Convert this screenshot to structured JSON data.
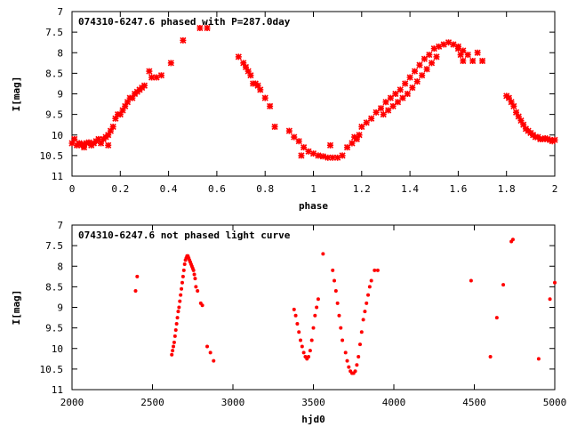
{
  "chart_data": [
    {
      "type": "scatter",
      "title": "074310-6247.6 phased with P=287.0day",
      "xlabel": "phase",
      "ylabel": "I[mag]",
      "xlim": [
        0,
        2
      ],
      "ylim": [
        11,
        7
      ],
      "y_inverted": true,
      "grid": false,
      "legend": "none",
      "x_ticks": [
        0,
        0.2,
        0.4,
        0.6,
        0.8,
        1,
        1.2,
        1.4,
        1.6,
        1.8,
        2
      ],
      "x_tick_labels": [
        "0",
        "0.2",
        "0.4",
        "0.6",
        "0.8",
        "1",
        "1.2",
        "1.4",
        "1.6",
        "1.8",
        "2"
      ],
      "y_ticks": [
        7,
        7.5,
        8,
        8.5,
        9,
        9.5,
        10,
        10.5,
        11
      ],
      "y_tick_labels": [
        "7",
        "7.5",
        "8",
        "8.5",
        "9",
        "9.5",
        "10",
        "10.5",
        "11"
      ],
      "marker_color": "#ff0000",
      "marker": "cross",
      "series": [
        {
          "x": [
            0.0,
            0.01,
            0.02,
            0.03,
            0.04,
            0.05,
            0.06,
            0.07,
            0.08,
            0.09,
            0.1,
            0.11,
            0.12,
            0.13,
            0.14,
            0.15,
            0.16,
            0.17,
            0.18,
            0.19,
            0.2,
            0.21,
            0.22,
            0.23,
            0.24,
            0.25,
            0.26,
            0.27,
            0.28,
            0.29,
            0.3,
            0.32,
            0.33,
            0.35,
            0.37,
            0.41,
            0.46,
            0.53,
            0.56,
            0.69,
            0.71,
            0.72,
            0.73,
            0.74,
            0.75,
            0.76,
            0.77,
            0.78,
            0.8,
            0.82,
            0.84,
            0.9,
            0.92,
            0.94,
            0.96,
            0.98,
            1.0,
            1.02,
            1.04,
            1.06,
            1.08,
            1.1,
            1.12,
            1.14,
            1.16,
            1.18,
            1.2,
            1.22,
            1.24,
            1.26,
            1.28,
            1.3,
            1.32,
            1.34,
            1.36,
            1.38,
            1.4,
            1.42,
            1.44,
            1.46,
            1.48,
            1.5,
            1.52,
            1.54,
            1.56,
            1.58,
            1.6,
            1.62,
            1.64,
            1.66,
            1.68,
            1.7,
            1.29,
            1.31,
            1.33,
            1.35,
            1.37,
            1.39,
            1.41,
            1.43,
            1.45,
            1.47,
            1.49,
            1.51,
            1.6,
            1.61,
            1.62,
            1.8,
            1.81,
            1.82,
            1.83,
            1.84,
            1.85,
            1.86,
            1.87,
            1.88,
            1.89,
            1.9,
            1.91,
            1.92,
            1.93,
            1.94,
            1.95,
            1.96,
            1.97,
            1.98,
            1.99,
            2.0,
            1.07,
            1.17,
            1.19,
            0.95,
            0.05,
            0.15
          ],
          "y": [
            10.2,
            10.1,
            10.25,
            10.2,
            10.25,
            10.22,
            10.2,
            10.18,
            10.25,
            10.2,
            10.15,
            10.1,
            10.2,
            10.1,
            10.05,
            10.0,
            9.9,
            9.8,
            9.6,
            9.5,
            9.5,
            9.4,
            9.3,
            9.2,
            9.1,
            9.1,
            9.0,
            8.95,
            8.9,
            8.85,
            8.8,
            8.45,
            8.6,
            8.6,
            8.55,
            8.25,
            7.7,
            7.4,
            7.4,
            8.1,
            8.25,
            8.35,
            8.45,
            8.55,
            8.75,
            8.75,
            8.8,
            8.9,
            9.1,
            9.3,
            9.8,
            9.9,
            10.05,
            10.15,
            10.3,
            10.4,
            10.45,
            10.5,
            10.52,
            10.55,
            10.55,
            10.55,
            10.5,
            10.3,
            10.2,
            10.1,
            9.8,
            9.7,
            9.6,
            9.45,
            9.35,
            9.2,
            9.1,
            9.0,
            8.9,
            8.75,
            8.6,
            8.45,
            8.3,
            8.15,
            8.05,
            7.9,
            7.85,
            7.8,
            7.75,
            7.8,
            7.85,
            7.95,
            8.05,
            8.2,
            8.0,
            8.2,
            9.5,
            9.4,
            9.3,
            9.2,
            9.1,
            9.0,
            8.85,
            8.7,
            8.55,
            8.4,
            8.25,
            8.1,
            7.9,
            8.05,
            8.2,
            9.05,
            9.1,
            9.2,
            9.3,
            9.45,
            9.55,
            9.65,
            9.75,
            9.85,
            9.9,
            9.95,
            10.0,
            10.05,
            10.05,
            10.1,
            10.1,
            10.08,
            10.1,
            10.12,
            10.15,
            10.12,
            10.25,
            10.05,
            10.0,
            10.5,
            10.3,
            10.25
          ]
        }
      ]
    },
    {
      "type": "scatter",
      "title": "074310-6247.6 not phased light curve",
      "xlabel": "hjd0",
      "ylabel": "I[mag]",
      "xlim": [
        2000,
        5000
      ],
      "ylim": [
        11,
        7
      ],
      "y_inverted": true,
      "grid": false,
      "legend": "none",
      "x_ticks": [
        2000,
        2500,
        3000,
        3500,
        4000,
        4500,
        5000
      ],
      "x_tick_labels": [
        "2000",
        "2500",
        "3000",
        "3500",
        "4000",
        "4500",
        "5000"
      ],
      "y_ticks": [
        7,
        7.5,
        8,
        8.5,
        9,
        9.5,
        10,
        10.5,
        11
      ],
      "y_tick_labels": [
        "7",
        "7.5",
        "8",
        "8.5",
        "9",
        "9.5",
        "10",
        "10.5",
        "11"
      ],
      "marker_color": "#ff0000",
      "marker": "dot",
      "series": [
        {
          "x": [
            2395,
            2405,
            2620,
            2625,
            2630,
            2635,
            2640,
            2645,
            2650,
            2655,
            2660,
            2665,
            2670,
            2675,
            2680,
            2685,
            2690,
            2695,
            2700,
            2705,
            2710,
            2715,
            2720,
            2725,
            2730,
            2735,
            2740,
            2745,
            2750,
            2755,
            2760,
            2765,
            2770,
            2780,
            2800,
            2810,
            2840,
            2860,
            2880,
            3380,
            3390,
            3400,
            3410,
            3420,
            3430,
            3440,
            3450,
            3460,
            3470,
            3480,
            3490,
            3500,
            3510,
            3520,
            3530,
            3560,
            3620,
            3630,
            3640,
            3650,
            3660,
            3670,
            3680,
            3700,
            3710,
            3720,
            3730,
            3740,
            3750,
            3760,
            3770,
            3780,
            3790,
            3800,
            3810,
            3820,
            3830,
            3840,
            3850,
            3860,
            3880,
            3900,
            4480,
            4600,
            4640,
            4680,
            4730,
            4740,
            4900,
            4970,
            5000
          ],
          "y": [
            8.6,
            8.25,
            10.15,
            10.05,
            9.95,
            9.85,
            9.7,
            9.55,
            9.4,
            9.25,
            9.1,
            9.0,
            8.85,
            8.7,
            8.55,
            8.4,
            8.25,
            8.1,
            7.95,
            7.85,
            7.8,
            7.75,
            7.75,
            7.8,
            7.85,
            7.9,
            7.95,
            8.0,
            8.05,
            8.1,
            8.2,
            8.3,
            8.5,
            8.6,
            8.9,
            8.95,
            9.95,
            10.1,
            10.3,
            9.05,
            9.2,
            9.4,
            9.6,
            9.8,
            9.95,
            10.1,
            10.2,
            10.25,
            10.2,
            10.05,
            9.8,
            9.5,
            9.2,
            9.0,
            8.8,
            7.7,
            8.1,
            8.35,
            8.6,
            8.9,
            9.2,
            9.5,
            9.8,
            10.1,
            10.3,
            10.45,
            10.55,
            10.6,
            10.6,
            10.55,
            10.4,
            10.2,
            9.9,
            9.6,
            9.3,
            9.1,
            8.9,
            8.7,
            8.5,
            8.35,
            8.1,
            8.1,
            8.35,
            10.2,
            9.25,
            8.45,
            7.4,
            7.35,
            10.25,
            8.8,
            8.4
          ]
        }
      ]
    }
  ]
}
